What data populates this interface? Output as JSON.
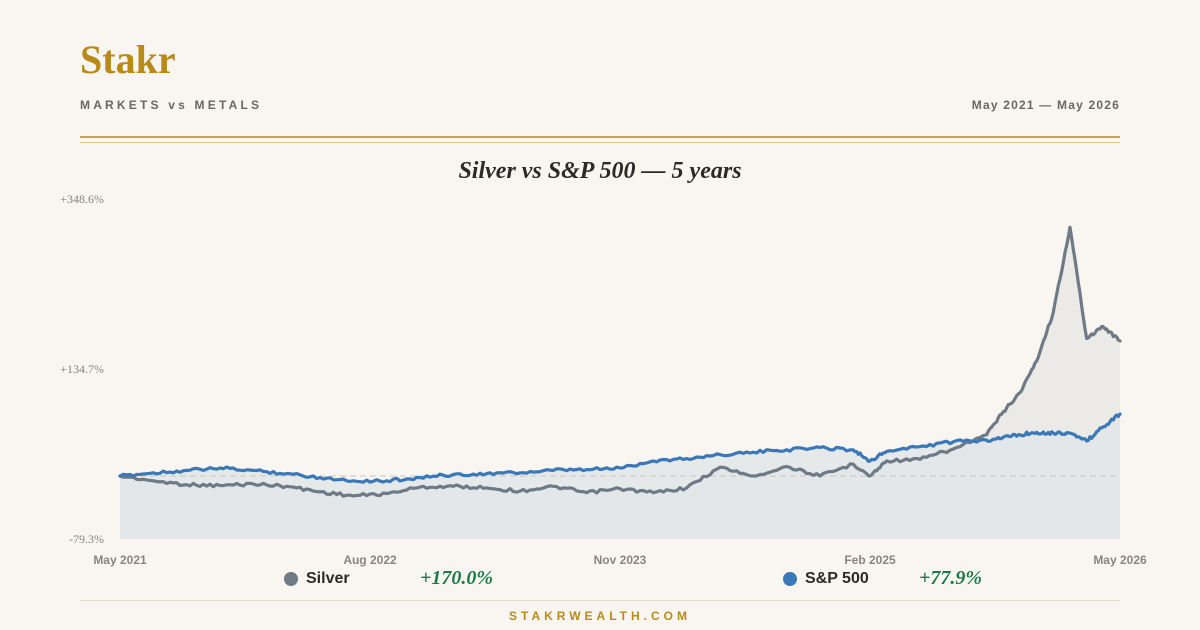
{
  "header": {
    "brand": "Stakr",
    "subtitle": "MARKETS vs METALS",
    "date_range": "May 2021 — May 2026"
  },
  "footer": {
    "site": "STAKRWEALTH.COM"
  },
  "chart_data": {
    "type": "line",
    "title": "Silver vs S&P 500 — 5 years",
    "xlabel": "",
    "ylabel": "",
    "ylim": [
      -79.3,
      348.6
    ],
    "ytick_labels": [
      "+348.6%",
      "+134.7%",
      "-79.3%"
    ],
    "ytick_values": [
      348.6,
      134.7,
      -79.3
    ],
    "xlim": [
      "2021-05",
      "2026-05"
    ],
    "xtick_labels": [
      "May 2021",
      "Aug 2022",
      "Nov 2023",
      "Feb 2025",
      "May 2026"
    ],
    "xtick_dates": [
      "2021-05",
      "2022-08",
      "2023-11",
      "2025-02",
      "2026-05"
    ],
    "baseline": 0,
    "grid": false,
    "legend_position": "bottom",
    "series": [
      {
        "name": "Silver",
        "color": "#6e7a86",
        "total_return": "+170.0%",
        "x": [
          "2021-05",
          "2021-07",
          "2021-09",
          "2021-11",
          "2022-01",
          "2022-03",
          "2022-05",
          "2022-07",
          "2022-09",
          "2022-11",
          "2023-01",
          "2023-03",
          "2023-05",
          "2023-07",
          "2023-09",
          "2023-11",
          "2024-01",
          "2024-03",
          "2024-05",
          "2024-07",
          "2024-09",
          "2024-11",
          "2025-01",
          "2025-02",
          "2025-03",
          "2025-05",
          "2025-07",
          "2025-09",
          "2025-10",
          "2025-11",
          "2025-12",
          "2026-01",
          "2026-02",
          "2026-03",
          "2026-04",
          "2026-05"
        ],
        "y": [
          0,
          -6,
          -11,
          -12,
          -10,
          -13,
          -20,
          -25,
          -22,
          -14,
          -13,
          -15,
          -19,
          -13,
          -21,
          -16,
          -21,
          -15,
          11,
          0,
          12,
          0,
          15,
          0,
          19,
          21,
          34,
          52,
          81,
          105,
          145,
          206,
          313,
          173,
          188,
          170
        ]
      },
      {
        "name": "S&P 500",
        "color": "#3b78b8",
        "total_return": "+77.9%",
        "x": [
          "2021-05",
          "2021-07",
          "2021-09",
          "2021-11",
          "2022-01",
          "2022-03",
          "2022-05",
          "2022-07",
          "2022-09",
          "2022-11",
          "2023-01",
          "2023-03",
          "2023-05",
          "2023-07",
          "2023-09",
          "2023-11",
          "2024-01",
          "2024-03",
          "2024-05",
          "2024-07",
          "2024-09",
          "2024-11",
          "2025-01",
          "2025-02",
          "2025-03",
          "2025-05",
          "2025-07",
          "2025-09",
          "2025-10",
          "2025-11",
          "2025-12",
          "2026-01",
          "2026-02",
          "2026-03",
          "2026-04",
          "2026-05"
        ],
        "y": [
          0,
          4,
          7,
          10,
          7,
          3,
          -2,
          -6,
          -6,
          -2,
          2,
          3,
          4,
          7,
          8,
          10,
          19,
          22,
          27,
          30,
          33,
          36,
          33,
          19,
          31,
          37,
          43,
          45,
          49,
          52,
          55,
          54,
          54,
          44,
          62,
          78
        ]
      }
    ]
  }
}
